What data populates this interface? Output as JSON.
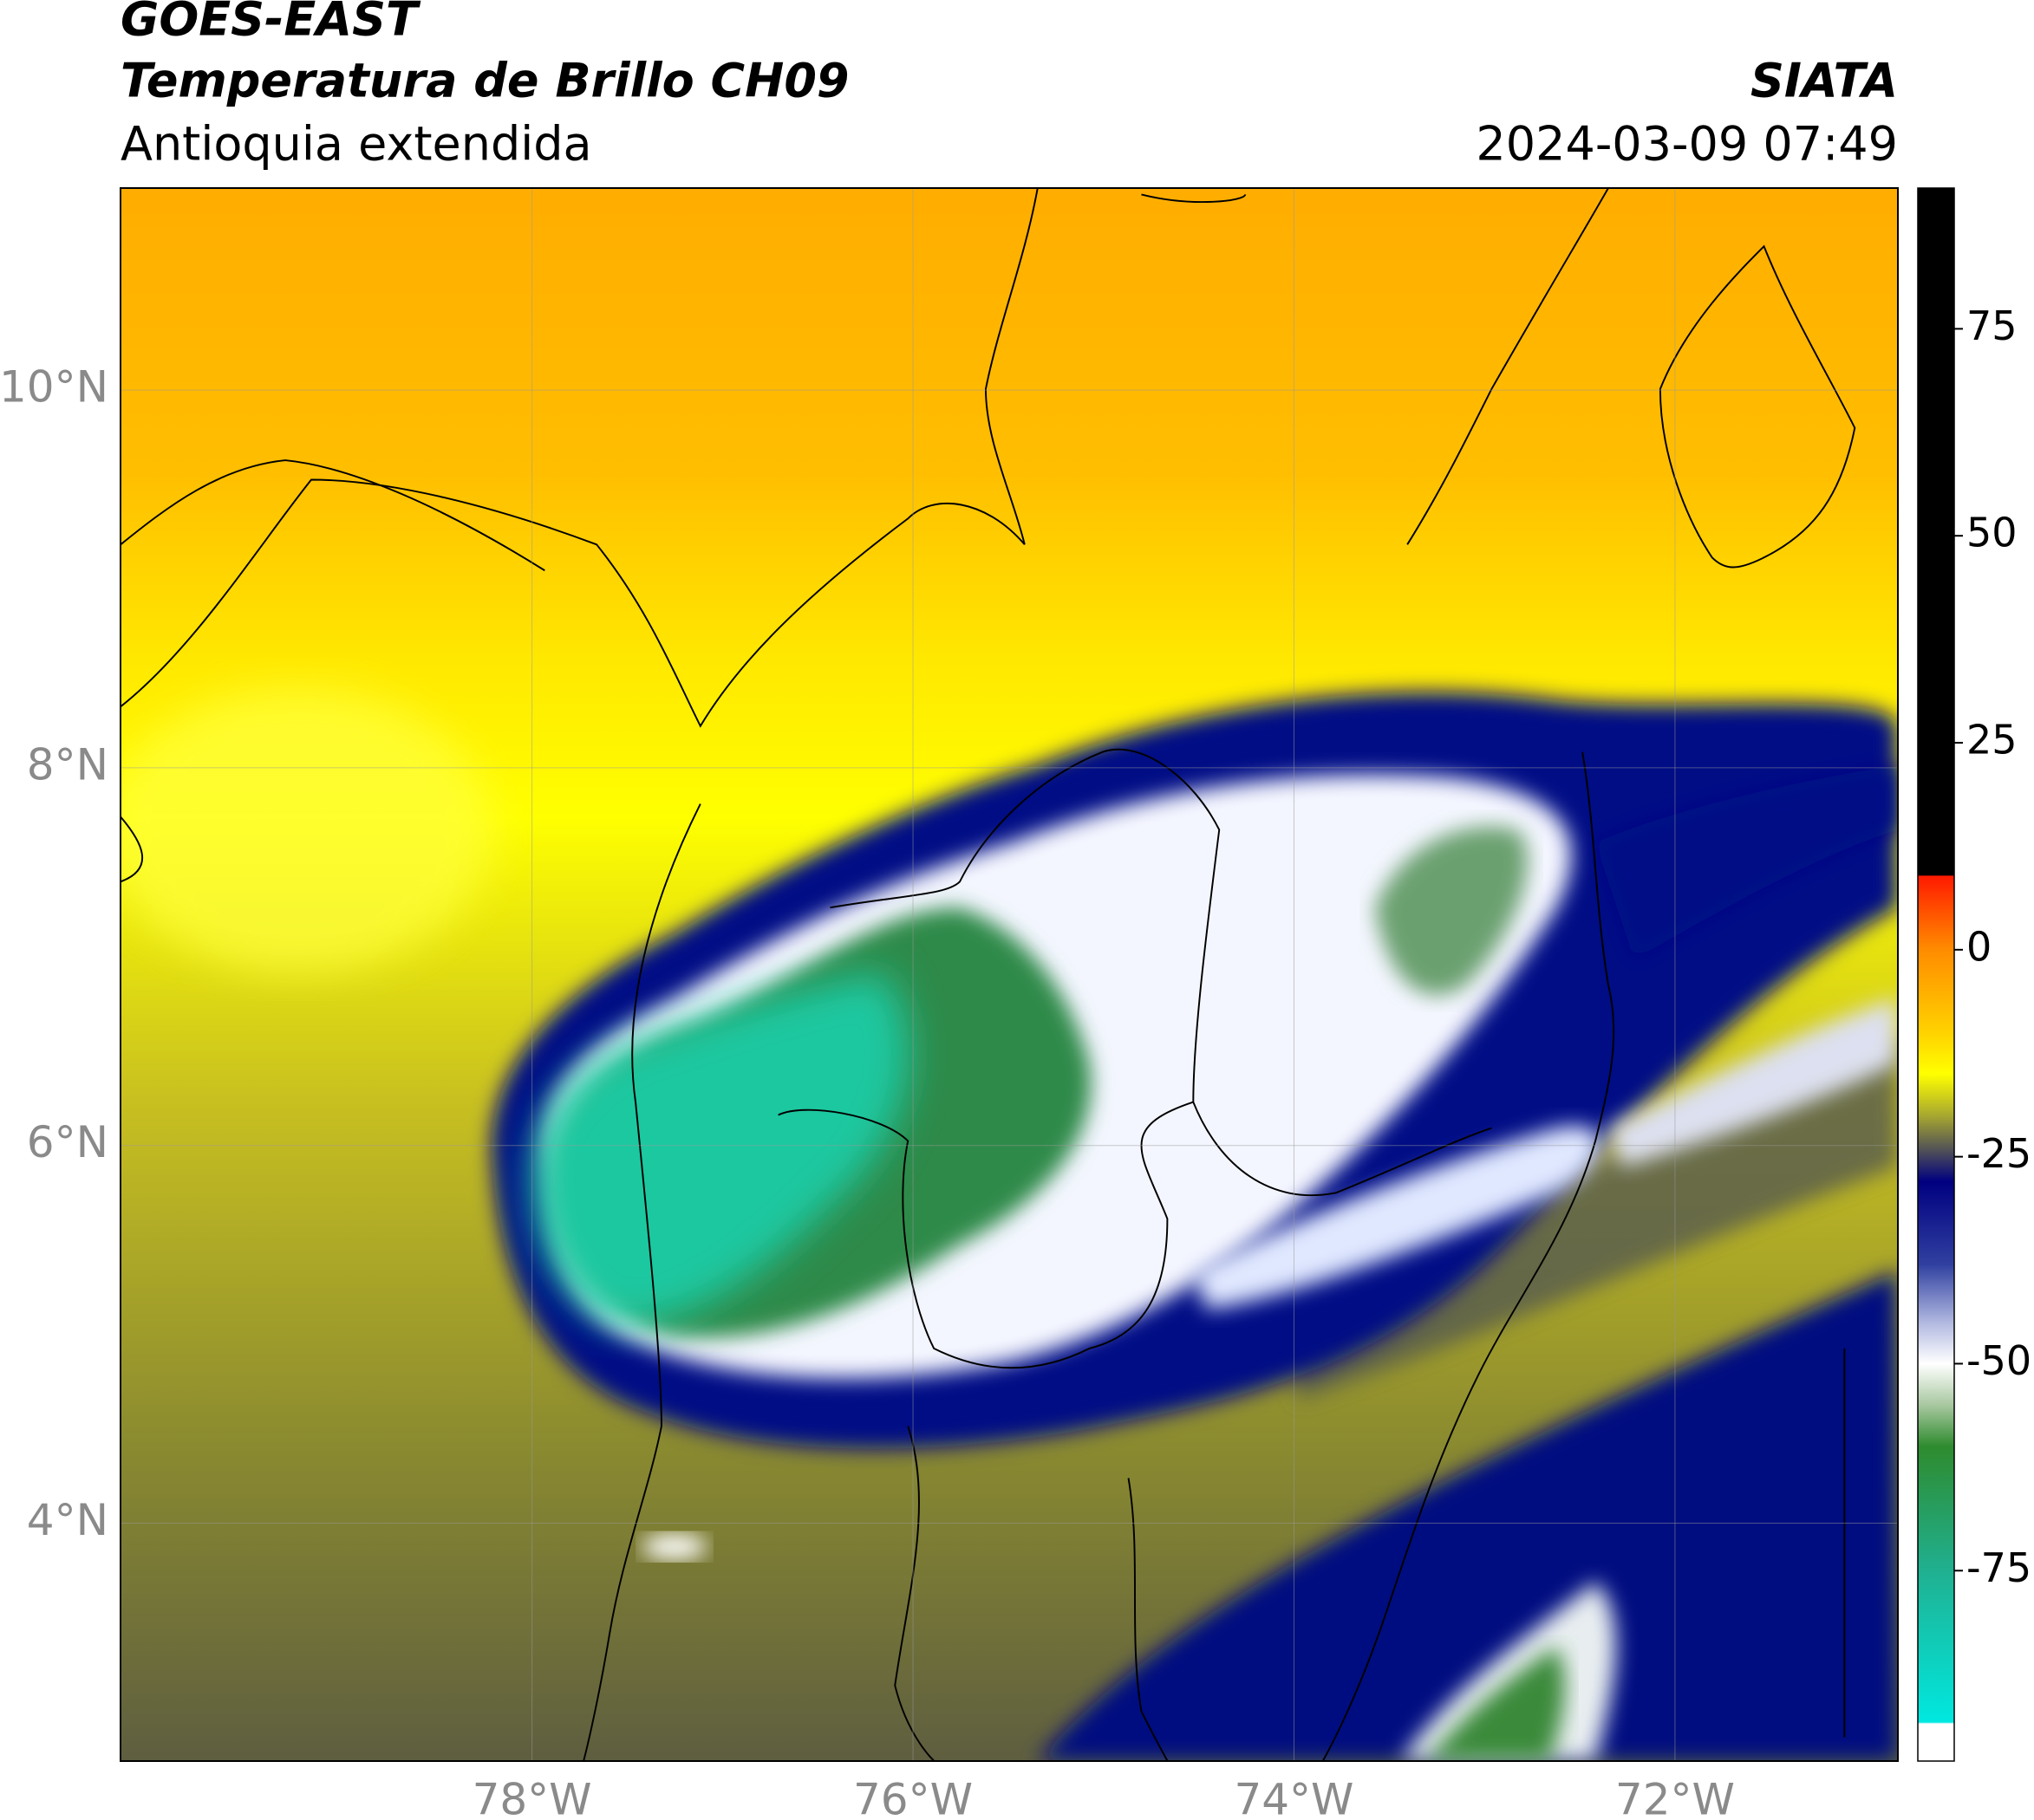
{
  "header": {
    "title": "GOES-EAST",
    "subtitle": "Temperatura de Brillo CH09",
    "region": "Antioquia extendida",
    "source": "SIATA",
    "datetime": "2024-03-09 07:49"
  },
  "map": {
    "xlim": [
      -80.16,
      -70.83
    ],
    "ylim": [
      2.74,
      11.07
    ],
    "xticks": [
      {
        "value": -78,
        "label": "78°W"
      },
      {
        "value": -76,
        "label": "76°W"
      },
      {
        "value": -74,
        "label": "74°W"
      },
      {
        "value": -72,
        "label": "72°W"
      }
    ],
    "yticks": [
      {
        "value": 4,
        "label": "4°N"
      },
      {
        "value": 6,
        "label": "6°N"
      },
      {
        "value": 8,
        "label": "8°N"
      },
      {
        "value": 10,
        "label": "10°N"
      }
    ],
    "grid": true
  },
  "colorbar": {
    "range": [
      -98,
      92
    ],
    "ticks": [
      -75,
      -50,
      -25,
      0,
      25,
      50,
      75
    ],
    "stops": [
      {
        "value": 92,
        "color": "#000000"
      },
      {
        "value": 9,
        "color": "#000000"
      },
      {
        "value": 8.9,
        "color": "#ff1a00"
      },
      {
        "value": 0,
        "color": "#ff8c00"
      },
      {
        "value": -10,
        "color": "#ffd200"
      },
      {
        "value": -15,
        "color": "#ffff00"
      },
      {
        "value": -20,
        "color": "#a8a830"
      },
      {
        "value": -24,
        "color": "#555555"
      },
      {
        "value": -28,
        "color": "#000080"
      },
      {
        "value": -38,
        "color": "#3040a0"
      },
      {
        "value": -45,
        "color": "#b0b8e0"
      },
      {
        "value": -50,
        "color": "#ffffff"
      },
      {
        "value": -55,
        "color": "#a8c8a0"
      },
      {
        "value": -60,
        "color": "#2e8b2e"
      },
      {
        "value": -75,
        "color": "#20b090"
      },
      {
        "value": -93.3,
        "color": "#00e8e0"
      },
      {
        "value": -93.5,
        "color": "#ffffff"
      },
      {
        "value": -98,
        "color": "#ffffff"
      }
    ]
  }
}
